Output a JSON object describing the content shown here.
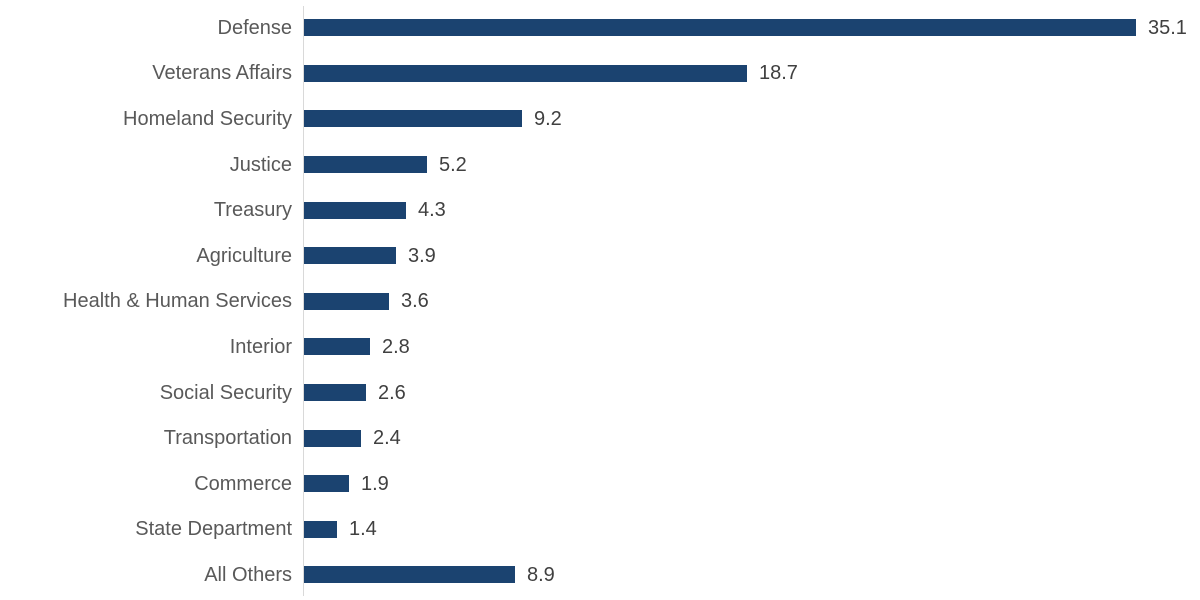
{
  "chart_data": {
    "type": "bar",
    "orientation": "horizontal",
    "title": "",
    "xlabel": "",
    "ylabel": "",
    "categories": [
      "Defense",
      "Veterans Affairs",
      "Homeland Security",
      "Justice",
      "Treasury",
      "Agriculture",
      "Health & Human Services",
      "Interior",
      "Social Security",
      "Transportation",
      "Commerce",
      "State Department",
      "All Others"
    ],
    "values": [
      35.1,
      18.7,
      9.2,
      5.2,
      4.3,
      3.9,
      3.6,
      2.8,
      2.6,
      2.4,
      1.9,
      1.4,
      8.9
    ],
    "data_labels": [
      "35.1",
      "18.7",
      "9.2",
      "5.2",
      "4.3",
      "3.9",
      "3.6",
      "2.8",
      "2.6",
      "2.4",
      "1.9",
      "1.4",
      "8.9"
    ],
    "data_label_position": "outside-end",
    "grid": false,
    "legend": null,
    "axis_line_visible": true,
    "colors": {
      "bar": "#1b4370",
      "category_label": "#595959",
      "value_label": "#404040",
      "axis_line": "#d9d9d9",
      "background": "#ffffff"
    }
  }
}
